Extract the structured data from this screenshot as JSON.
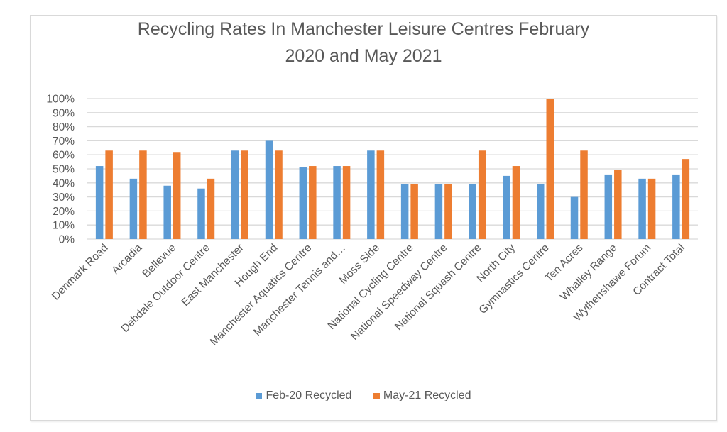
{
  "chart_data": {
    "type": "bar",
    "title": "Recycling Rates In Manchester Leisure Centres February 2020 and May 2021",
    "title_lines": [
      "Recycling Rates In Manchester Leisure Centres February",
      "2020 and May 2021"
    ],
    "xlabel": "",
    "ylabel": "",
    "ylim": [
      0,
      100
    ],
    "y_ticks": [
      0,
      10,
      20,
      30,
      40,
      50,
      60,
      70,
      80,
      90,
      100
    ],
    "y_tick_labels": [
      "0%",
      "10%",
      "20%",
      "30%",
      "40%",
      "50%",
      "60%",
      "70%",
      "80%",
      "90%",
      "100%"
    ],
    "grid": true,
    "legend_position": "bottom",
    "categories": [
      "Denmark Road",
      "Arcadia",
      "Bellevue",
      "Debdale Outdoor Centre",
      "East Manchester",
      "Hough End",
      "Manchester Aquatics Centre",
      "Manchester Tennis and…",
      "Moss Side",
      "National Cycling Centre",
      "National Speedway Centre",
      "National Squash Centre",
      "North City",
      "Gymnastics Centre",
      "Ten Acres",
      "Whalley Range",
      "Wythenshawe Forum",
      "Contract Total"
    ],
    "series": [
      {
        "name": "Feb-20 Recycled",
        "color": "#5b9bd5",
        "values": [
          52,
          43,
          38,
          36,
          63,
          70,
          51,
          52,
          63,
          39,
          39,
          39,
          45,
          39,
          30,
          46,
          43,
          46
        ]
      },
      {
        "name": "May-21 Recycled",
        "color": "#ed7d31",
        "values": [
          63,
          63,
          62,
          43,
          63,
          63,
          52,
          52,
          63,
          39,
          39,
          63,
          52,
          100,
          63,
          49,
          43,
          57
        ]
      }
    ],
    "units": "%"
  },
  "colors": {
    "gridline": "#d9d9d9",
    "text": "#595959",
    "frame_border": "#d9d9d9"
  }
}
